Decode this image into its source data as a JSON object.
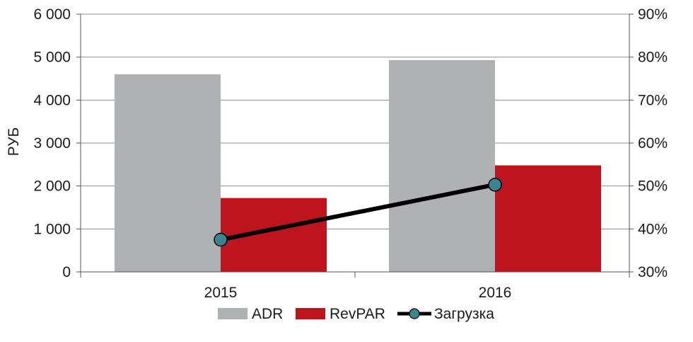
{
  "chart_data": {
    "type": "bar",
    "categories": [
      "2015",
      "2016"
    ],
    "series": [
      {
        "name": "ADR",
        "kind": "bar",
        "axis": "left",
        "color": "#b0b1b3",
        "values": [
          4600,
          4930
        ]
      },
      {
        "name": "RevPAR",
        "kind": "bar",
        "axis": "left",
        "color": "#be141e",
        "values": [
          1720,
          2480
        ]
      },
      {
        "name": "Загрузка",
        "kind": "line",
        "axis": "right",
        "color": "#000000",
        "marker_color": "#3b8593",
        "values": [
          37.5,
          50.3
        ]
      }
    ],
    "ylabel": "РУБ",
    "y_left": {
      "min": 0,
      "max": 6000,
      "ticks": [
        "0",
        "1 000",
        "2 000",
        "3 000",
        "4 000",
        "5 000",
        "6 000"
      ],
      "tick_values": [
        0,
        1000,
        2000,
        3000,
        4000,
        5000,
        6000
      ]
    },
    "y_right": {
      "min": 30,
      "max": 90,
      "ticks": [
        "30%",
        "40%",
        "50%",
        "60%",
        "70%",
        "80%",
        "90%"
      ],
      "tick_values": [
        30,
        40,
        50,
        60,
        70,
        80,
        90
      ]
    },
    "grid": true,
    "legend": "bottom"
  }
}
